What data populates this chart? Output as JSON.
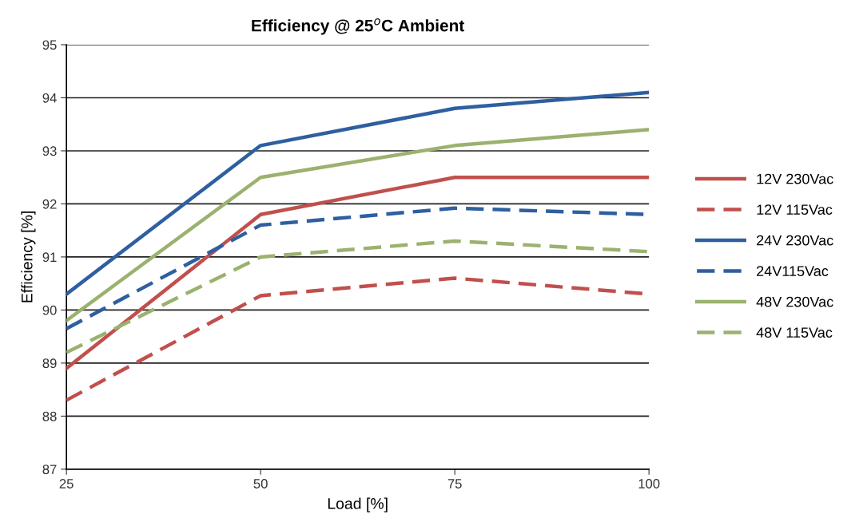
{
  "chart_data": {
    "type": "line",
    "title": "Efficiency @ 25$^{o}$C Ambient",
    "xlabel": "Load [%]",
    "ylabel": "Efficiency [%]",
    "x": [
      25,
      50,
      75,
      100
    ],
    "series": [
      {
        "name": "12V 230Vac",
        "color": "#c0504d",
        "line_style": "solid",
        "values": [
          88.9,
          91.8,
          92.5,
          92.5
        ]
      },
      {
        "name": "12V 115Vac",
        "color": "#c0504d",
        "line_style": "dashed",
        "values": [
          88.3,
          90.27,
          90.6,
          90.3
        ]
      },
      {
        "name": "24V 230Vac",
        "color": "#2e5fa0",
        "line_style": "solid",
        "values": [
          90.3,
          93.1,
          93.8,
          94.1
        ]
      },
      {
        "name": "24V115Vac",
        "color": "#2e5fa0",
        "line_style": "dashed",
        "values": [
          89.65,
          91.6,
          91.92,
          91.8
        ]
      },
      {
        "name": "48V 230Vac",
        "color": "#9bb26f",
        "line_style": "solid",
        "values": [
          89.8,
          92.5,
          93.1,
          93.4
        ]
      },
      {
        "name": "48V 115Vac",
        "color": "#9bb26f",
        "line_style": "dashed",
        "values": [
          89.2,
          91.0,
          91.3,
          91.1
        ]
      }
    ],
    "xlim": [
      25,
      100
    ],
    "xticks": [
      25,
      50,
      75,
      100
    ],
    "ylim": [
      87,
      95
    ],
    "yticks": [
      87,
      88,
      89,
      90,
      91,
      92,
      93,
      94,
      95
    ],
    "grid": "y",
    "legend": "right",
    "marker": "none"
  }
}
